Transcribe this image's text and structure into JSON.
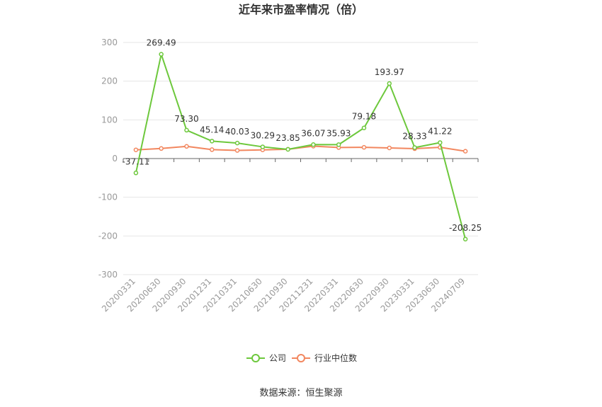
{
  "chart_data": {
    "type": "line",
    "title": "近年来市盈率情况（倍）",
    "categories": [
      "20200331",
      "20200630",
      "20200930",
      "20201231",
      "20210331",
      "20210630",
      "20210930",
      "20211231",
      "20220331",
      "20220630",
      "20220930",
      "20230331",
      "20230630",
      "20240709"
    ],
    "ylim": [
      -300,
      300
    ],
    "yticks": [
      300,
      200,
      100,
      0,
      -100,
      -200,
      -300
    ],
    "grid": true,
    "legend_position": "bottom",
    "series": [
      {
        "name": "公司",
        "color": "#6dc83c",
        "values": [
          -37.11,
          269.49,
          73.3,
          45.14,
          40.03,
          30.29,
          23.85,
          36.07,
          35.93,
          79.18,
          193.97,
          28.33,
          41.22,
          -208.25
        ],
        "labels": [
          "-37.11",
          "269.49",
          "73.30",
          "45.14",
          "40.03",
          "30.29",
          "23.85",
          "36.07",
          "35.93",
          "79.18",
          "193.97",
          "28.33",
          "41.22",
          "-208.25"
        ]
      },
      {
        "name": "行业中位数",
        "color": "#f2875f",
        "values": [
          22.5,
          26.0,
          31.5,
          23.0,
          21.0,
          22.5,
          24.0,
          32.0,
          28.5,
          29.0,
          27.5,
          25.5,
          29.0,
          19.0
        ]
      }
    ],
    "source": "数据来源：恒生聚源"
  }
}
